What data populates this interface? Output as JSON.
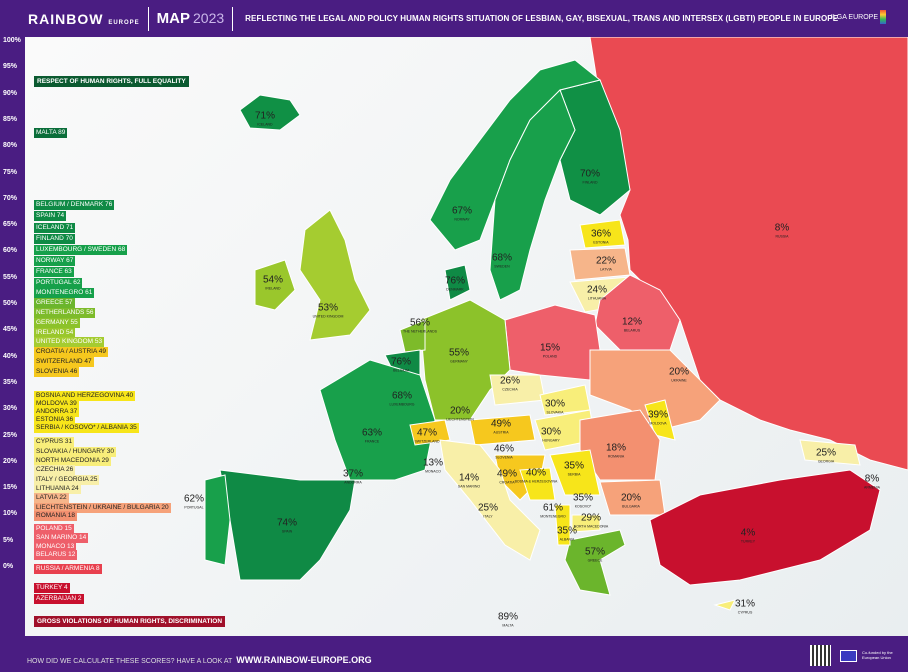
{
  "header": {
    "brand": "RAINBOW",
    "brand_sub": "EUROPE",
    "map": "MAP",
    "year": "2023",
    "subtitle": "REFLECTING THE LEGAL AND POLICY HUMAN RIGHTS SITUATION OF LESBIAN, GAY, BISEXUAL, TRANS AND INTERSEX (LGBTI) PEOPLE IN EUROPE",
    "partner": "ILGA EUROPE"
  },
  "scale": [
    "100%",
    "95%",
    "90%",
    "85%",
    "80%",
    "75%",
    "70%",
    "65%",
    "60%",
    "55%",
    "50%",
    "45%",
    "40%",
    "35%",
    "30%",
    "25%",
    "20%",
    "15%",
    "10%",
    "5%",
    "0%"
  ],
  "top_label": "RESPECT OF HUMAN RIGHTS, FULL EQUALITY",
  "bottom_label": "GROSS VIOLATIONS OF HUMAN RIGHTS, DISCRIMINATION",
  "ranking": [
    {
      "text": "MALTA 89",
      "color": "#0b6e3a"
    },
    {
      "text": "BELGIUM / DENMARK 76",
      "color": "#0f8a45"
    },
    {
      "text": "SPAIN 74",
      "color": "#0f8a45"
    },
    {
      "text": "ICELAND 71",
      "color": "#0f8a45"
    },
    {
      "text": "FINLAND 70",
      "color": "#0f8a45"
    },
    {
      "text": "LUXEMBOURG / SWEDEN 68",
      "color": "#16a04a"
    },
    {
      "text": "NORWAY 67",
      "color": "#16a04a"
    },
    {
      "text": "FRANCE 63",
      "color": "#16a04a"
    },
    {
      "text": "PORTUGAL 62",
      "color": "#16a04a"
    },
    {
      "text": "MONTENEGRO 61",
      "color": "#16a04a"
    },
    {
      "text": "GREECE 57",
      "color": "#6bb52c"
    },
    {
      "text": "NETHERLANDS 56",
      "color": "#7dbb2a"
    },
    {
      "text": "GERMANY 55",
      "color": "#8cc22a"
    },
    {
      "text": "IRELAND 54",
      "color": "#9ac72c"
    },
    {
      "text": "UNITED KINGDOM 53",
      "color": "#a5cc30"
    },
    {
      "text": "CROATIA / AUSTRIA 49",
      "color": "#f6c81e"
    },
    {
      "text": "SWITZERLAND 47",
      "color": "#f6c81e"
    },
    {
      "text": "SLOVENIA 46",
      "color": "#f6c81e"
    },
    {
      "text": "BOSNIA AND HERZEGOVINA 40",
      "color": "#f7e51a"
    },
    {
      "text": "MOLDOVA 39",
      "color": "#f7e51a"
    },
    {
      "text": "ANDORRA 37",
      "color": "#f7e51a"
    },
    {
      "text": "ESTONIA 36",
      "color": "#f7e51a"
    },
    {
      "text": "SERBIA / KOSOVO* / ALBANIA 35",
      "color": "#f7e51a"
    },
    {
      "text": "CYPRUS 31",
      "color": "#f8ee7a"
    },
    {
      "text": "SLOVAKIA / HUNGARY 30",
      "color": "#f8ee7a"
    },
    {
      "text": "NORTH MACEDONIA 29",
      "color": "#f8ee7a"
    },
    {
      "text": "CZECHIA 26",
      "color": "#f8efa8"
    },
    {
      "text": "ITALY / GEORGIA 25",
      "color": "#f8efa8"
    },
    {
      "text": "LITHUANIA 24",
      "color": "#f8efa8"
    },
    {
      "text": "LATVIA 22",
      "color": "#f6b58a"
    },
    {
      "text": "LIECHTENSTEIN / UKRAINE / BULGARIA 20",
      "color": "#f6a27a"
    },
    {
      "text": "ROMANIA 18",
      "color": "#f39070"
    },
    {
      "text": "POLAND 15",
      "color": "#ee5f6a"
    },
    {
      "text": "SAN MARINO 14",
      "color": "#ee5f6a"
    },
    {
      "text": "MONACO 13",
      "color": "#ee5f6a"
    },
    {
      "text": "BELARUS 12",
      "color": "#ee5f6a"
    },
    {
      "text": "RUSSIA / ARMENIA 8",
      "color": "#e8404e"
    },
    {
      "text": "TURKEY 4",
      "color": "#c8102e"
    },
    {
      "text": "AZERBAIJAN 2",
      "color": "#c8102e"
    }
  ],
  "countries": [
    {
      "name": "Iceland",
      "score": "71%",
      "color": "#109045"
    },
    {
      "name": "Norway",
      "score": "67%",
      "color": "#18a04b"
    },
    {
      "name": "Sweden",
      "score": "68%",
      "color": "#18a04b"
    },
    {
      "name": "Finland",
      "score": "70%",
      "color": "#109045"
    },
    {
      "name": "Russia",
      "score": "8%",
      "color": "#ea4a52"
    },
    {
      "name": "Estonia",
      "score": "36%",
      "color": "#f7e51a"
    },
    {
      "name": "Latvia",
      "score": "22%",
      "color": "#f6b58a"
    },
    {
      "name": "Lithuania",
      "score": "24%",
      "color": "#f8efa8"
    },
    {
      "name": "Belarus",
      "score": "12%",
      "color": "#ee5f6a"
    },
    {
      "name": "Denmark",
      "score": "76%",
      "color": "#0f8a45"
    },
    {
      "name": "Ireland",
      "score": "54%",
      "color": "#9ac72c"
    },
    {
      "name": "United Kingdom",
      "score": "53%",
      "color": "#a5cc30"
    },
    {
      "name": "The Netherlands",
      "score": "56%",
      "color": "#7dbb2a"
    },
    {
      "name": "Belgium",
      "score": "76%",
      "color": "#0f8a45"
    },
    {
      "name": "Luxembourg",
      "score": "68%",
      "color": "#18a04b"
    },
    {
      "name": "Germany",
      "score": "55%",
      "color": "#8cc22a"
    },
    {
      "name": "Poland",
      "score": "15%",
      "color": "#ee5f6a"
    },
    {
      "name": "Ukraine",
      "score": "20%",
      "color": "#f6a27a"
    },
    {
      "name": "Czechia",
      "score": "26%",
      "color": "#f8efa8"
    },
    {
      "name": "Slovakia",
      "score": "30%",
      "color": "#f8ee7a"
    },
    {
      "name": "Moldova",
      "score": "39%",
      "color": "#f7e51a"
    },
    {
      "name": "France",
      "score": "63%",
      "color": "#18a04b"
    },
    {
      "name": "Switzerland",
      "score": "47%",
      "color": "#f6c81e"
    },
    {
      "name": "Liechtenstein",
      "score": "20%",
      "color": "#f6a27a"
    },
    {
      "name": "Austria",
      "score": "49%",
      "color": "#f6c81e"
    },
    {
      "name": "Hungary",
      "score": "30%",
      "color": "#f8ee7a"
    },
    {
      "name": "Romania",
      "score": "18%",
      "color": "#f39070"
    },
    {
      "name": "Slovenia",
      "score": "46%",
      "color": "#f6c81e"
    },
    {
      "name": "Croatia",
      "score": "49%",
      "color": "#f6c81e"
    },
    {
      "name": "Bosnia & Herzegovina",
      "score": "40%",
      "color": "#f7e51a"
    },
    {
      "name": "Serbia",
      "score": "35%",
      "color": "#f7e51a"
    },
    {
      "name": "Monaco",
      "score": "13%",
      "color": "#ee5f6a"
    },
    {
      "name": "San Marino",
      "score": "14%",
      "color": "#ee5f6a"
    },
    {
      "name": "Italy",
      "score": "25%",
      "color": "#f8efa8"
    },
    {
      "name": "Montenegro",
      "score": "61%",
      "color": "#18a04b"
    },
    {
      "name": "Kosovo*",
      "score": "35%",
      "color": "#f7e51a"
    },
    {
      "name": "Bulgaria",
      "score": "20%",
      "color": "#f6a27a"
    },
    {
      "name": "Georgia",
      "score": "25%",
      "color": "#f8efa8"
    },
    {
      "name": "Armenia",
      "score": "8%",
      "color": "#e8404e"
    },
    {
      "name": "Portugal",
      "score": "62%",
      "color": "#18a04b"
    },
    {
      "name": "Spain",
      "score": "74%",
      "color": "#0f8a45"
    },
    {
      "name": "Andorra",
      "score": "37%",
      "color": "#f7e51a"
    },
    {
      "name": "Albania",
      "score": "35%",
      "color": "#f7e51a"
    },
    {
      "name": "North Macedonia",
      "score": "29%",
      "color": "#f8ee7a"
    },
    {
      "name": "Greece",
      "score": "57%",
      "color": "#6bb52c"
    },
    {
      "name": "Turkey",
      "score": "4%",
      "color": "#c8102e"
    },
    {
      "name": "Cyprus",
      "score": "31%",
      "color": "#f8ee7a"
    },
    {
      "name": "Malta",
      "score": "89%",
      "color": "#0b6e3a"
    }
  ],
  "footer": {
    "question": "HOW DID WE CALCULATE THESE SCORES? HAVE A LOOK AT",
    "url": "WWW.RAINBOW-EUROPE.ORG",
    "eu": "Co-funded by the European Union"
  }
}
